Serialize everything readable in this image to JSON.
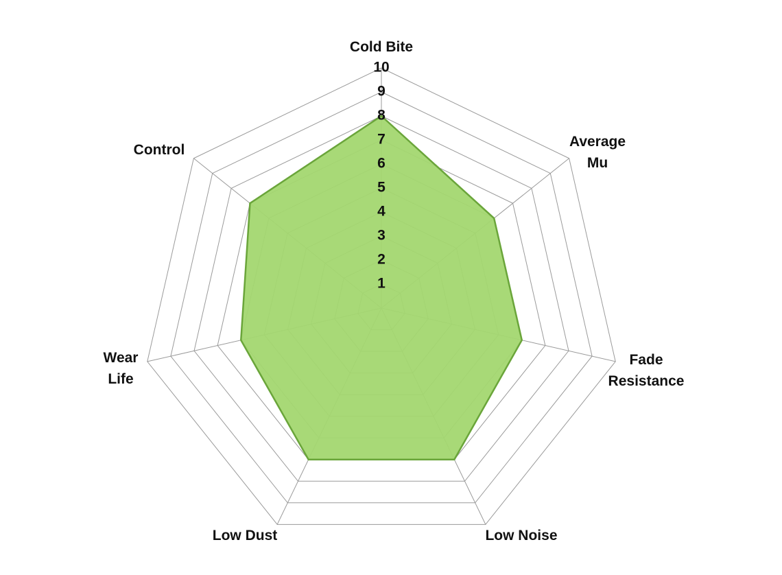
{
  "chart_data": {
    "type": "radar",
    "categories": [
      [
        "Cold Bite"
      ],
      [
        "Average",
        "Mu"
      ],
      [
        "Fade",
        "Resistance"
      ],
      [
        "Low Noise"
      ],
      [
        "Low Dust"
      ],
      [
        "Wear",
        "Life"
      ],
      [
        "Control"
      ]
    ],
    "values": [
      8,
      6,
      6,
      7,
      7,
      6,
      7
    ],
    "color": "#a3d770",
    "line_color": "#6aa53a",
    "rlim": [
      0,
      10
    ],
    "rticks": [
      1,
      2,
      3,
      4,
      5,
      6,
      7,
      8,
      9,
      10
    ],
    "grid": true
  }
}
